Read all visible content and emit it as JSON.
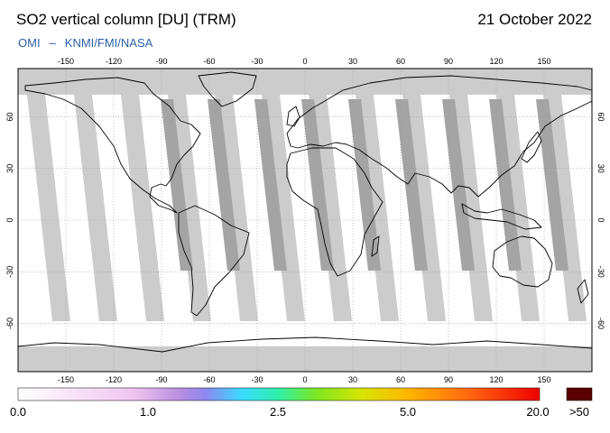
{
  "title": "SO2 vertical column [DU] (TRM)",
  "date": "21 October 2022",
  "credits": {
    "instrument": "OMI",
    "separator": "–",
    "agency": "KNMI/FMI/NASA"
  },
  "map": {
    "projection": "equirectangular",
    "lon_ticks": [
      "-150",
      "-120",
      "-90",
      "-60",
      "-30",
      "0",
      "30",
      "60",
      "90",
      "120",
      "150"
    ],
    "lat_ticks": [
      "60",
      "30",
      "0",
      "-30",
      "-60"
    ],
    "colors": {
      "no_data": "#cccccc",
      "overpass_gap": "#a4a4a4",
      "low_value": "#ffffff",
      "coast": "#000000"
    }
  },
  "colorbar": {
    "labels": [
      "0.0",
      "1.0",
      "2.5",
      "5.0",
      "20.0"
    ],
    "overflow_label": ">50",
    "overflow_color": "#5a0000"
  }
}
